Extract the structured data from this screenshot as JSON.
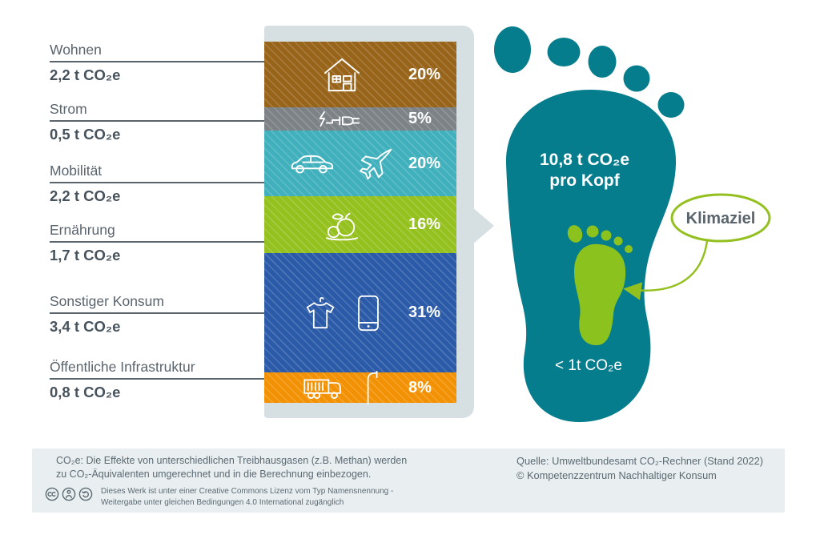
{
  "chart_data": {
    "type": "bar",
    "stacked": true,
    "unit": "t CO₂e",
    "categories": [
      "Wohnen",
      "Strom",
      "Mobilität",
      "Ernährung",
      "Sonstiger Konsum",
      "Öffentliche Infrastruktur"
    ],
    "value_labels": [
      "2,2 t CO₂e",
      "0,5 t CO₂e",
      "2,2 t CO₂e",
      "1,7 t CO₂e",
      "3,4 t CO₂e",
      "0,8 t CO₂e"
    ],
    "values_tonnes": [
      2.2,
      0.5,
      2.2,
      1.7,
      3.4,
      0.8
    ],
    "percent_labels": [
      "20%",
      "5%",
      "20%",
      "16%",
      "31%",
      "8%"
    ],
    "values_percent": [
      20,
      5,
      20,
      16,
      31,
      8
    ],
    "colors": [
      "#98641a",
      "#7d8287",
      "#40b0bc",
      "#95c11e",
      "#2b5ba8",
      "#f29104"
    ],
    "icons": [
      [
        "house-icon"
      ],
      [
        "power-plug-icon"
      ],
      [
        "car-icon",
        "airplane-icon"
      ],
      [
        "food-icon"
      ],
      [
        "tshirt-icon",
        "smartphone-icon"
      ],
      [
        "garbage-truck-icon",
        "street-lamp-icon"
      ]
    ],
    "total_label": "10,8 t CO₂e pro Kopf",
    "climate_target_label": "< 1t CO₂e"
  },
  "footprint": {
    "per_capita_line1": "10,8 t CO₂e",
    "per_capita_line2": "pro Kopf",
    "climate_goal_bubble": "Klimaziel",
    "climate_goal_value": "< 1t CO₂e",
    "foot_color": "#067d8d",
    "goal_color": "#8cc21d",
    "bubble_border_color": "#93c01f"
  },
  "footer": {
    "note_line1": "CO₂e: Die Effekte von unterschiedlichen Treibhausgasen (z.B. Methan) werden",
    "note_line2": "zu CO₂-Äquivalenten umgerechnet und in die Berechnung einbezogen.",
    "license_icons": [
      "cc-icon",
      "cc-by-icon",
      "cc-sa-icon"
    ],
    "license_line1": "Dieses Werk ist unter einer Creative Commons Lizenz vom Typ Namensnennung -",
    "license_line2": "Weitergabe unter gleichen Bedingungen 4.0 International zugänglich",
    "source_line1": "Quelle: Umweltbundesamt CO₂-Rechner (Stand 2022)",
    "source_line2": "© Kompetenzzentrum Nachhaltiger Konsum"
  }
}
